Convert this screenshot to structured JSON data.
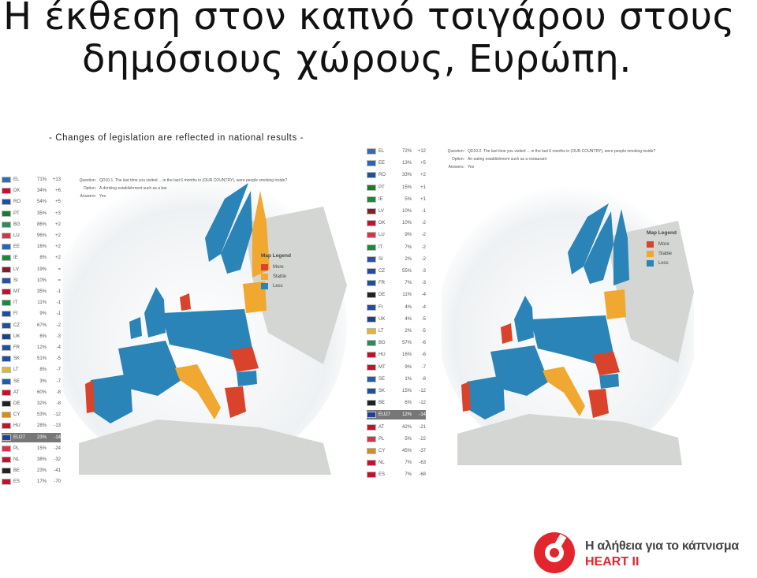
{
  "title": {
    "line1": "Η έκθεση στον καπνό τσιγάρου στους",
    "line2": "δημόσιους χώρους, Ευρώπη."
  },
  "subtitle": "- Changes of legislation are reflected in national results -",
  "left_panel": {
    "question_label": "Question:",
    "question": "QD10.1. The last time you visited ... in the last 6 months in (OUR COUNTRY), were people smoking inside?",
    "option_label": "Option:",
    "option": "A drinking establishment such as a bar",
    "answers_label": "Answers:",
    "answers": "Yes",
    "rows": [
      {
        "code": "EL",
        "pct": "71%",
        "chg": "+13",
        "flag": "#2f6db5"
      },
      {
        "code": "DK",
        "pct": "34%",
        "chg": "+6",
        "flag": "#c8102e"
      },
      {
        "code": "RO",
        "pct": "54%",
        "chg": "+5",
        "flag": "#1e4fa0"
      },
      {
        "code": "PT",
        "pct": "35%",
        "chg": "+3",
        "flag": "#1a7a2e"
      },
      {
        "code": "BG",
        "pct": "86%",
        "chg": "+2",
        "flag": "#2e8b57"
      },
      {
        "code": "LU",
        "pct": "96%",
        "chg": "+2",
        "flag": "#d9334a"
      },
      {
        "code": "EE",
        "pct": "16%",
        "chg": "+2",
        "flag": "#2a63b8"
      },
      {
        "code": "IE",
        "pct": "8%",
        "chg": "+2",
        "flag": "#1a8a3c"
      },
      {
        "code": "LV",
        "pct": "19%",
        "chg": "=",
        "flag": "#8a1c2a"
      },
      {
        "code": "SI",
        "pct": "10%",
        "chg": "=",
        "flag": "#2a4fa8"
      },
      {
        "code": "MT",
        "pct": "35%",
        "chg": "-1",
        "flag": "#c8102e"
      },
      {
        "code": "IT",
        "pct": "11%",
        "chg": "-1",
        "flag": "#1a8a3c"
      },
      {
        "code": "FI",
        "pct": "9%",
        "chg": "-1",
        "flag": "#1e4fa0"
      },
      {
        "code": "CZ",
        "pct": "67%",
        "chg": "-2",
        "flag": "#1e4fa0"
      },
      {
        "code": "UK",
        "pct": "6%",
        "chg": "-3",
        "flag": "#1e3f8a"
      },
      {
        "code": "FR",
        "pct": "12%",
        "chg": "-4",
        "flag": "#1e4fa0"
      },
      {
        "code": "SK",
        "pct": "51%",
        "chg": "-5",
        "flag": "#1e4fa0"
      },
      {
        "code": "LT",
        "pct": "8%",
        "chg": "-7",
        "flag": "#e0b82a"
      },
      {
        "code": "SE",
        "pct": "3%",
        "chg": "-7",
        "flag": "#1f5fa8"
      },
      {
        "code": "AT",
        "pct": "60%",
        "chg": "-8",
        "flag": "#c8102e"
      },
      {
        "code": "DE",
        "pct": "32%",
        "chg": "-8",
        "flag": "#222222"
      },
      {
        "code": "CY",
        "pct": "53%",
        "chg": "-12",
        "flag": "#d98a1e"
      },
      {
        "code": "HU",
        "pct": "28%",
        "chg": "-13",
        "flag": "#c8102e"
      },
      {
        "code": "EU27",
        "pct": "23%",
        "chg": "-14",
        "flag": "#1e3f9a"
      },
      {
        "code": "PL",
        "pct": "15%",
        "chg": "-24",
        "flag": "#d9334a"
      },
      {
        "code": "NL",
        "pct": "38%",
        "chg": "-32",
        "flag": "#c8102e"
      },
      {
        "code": "BE",
        "pct": "23%",
        "chg": "-41",
        "flag": "#222222"
      },
      {
        "code": "ES",
        "pct": "17%",
        "chg": "-70",
        "flag": "#c8102e"
      }
    ]
  },
  "right_panel": {
    "question_label": "Question:",
    "question": "QD10.2. The last time you visited ... in the last 6 months in (OUR COUNTRY), were people smoking inside?",
    "option_label": "Option:",
    "option": "An eating establishment such as a restaurant",
    "answers_label": "Answers:",
    "answers": "Yes",
    "rows": [
      {
        "code": "EL",
        "pct": "72%",
        "chg": "+12",
        "flag": "#2f6db5"
      },
      {
        "code": "EE",
        "pct": "13%",
        "chg": "+5",
        "flag": "#2a63b8"
      },
      {
        "code": "RO",
        "pct": "33%",
        "chg": "+2",
        "flag": "#1e4fa0"
      },
      {
        "code": "PT",
        "pct": "15%",
        "chg": "+1",
        "flag": "#1a7a2e"
      },
      {
        "code": "IE",
        "pct": "5%",
        "chg": "+1",
        "flag": "#1a8a3c"
      },
      {
        "code": "LV",
        "pct": "10%",
        "chg": "-1",
        "flag": "#8a1c2a"
      },
      {
        "code": "DK",
        "pct": "10%",
        "chg": "-2",
        "flag": "#c8102e"
      },
      {
        "code": "LU",
        "pct": "9%",
        "chg": "-2",
        "flag": "#d9334a"
      },
      {
        "code": "IT",
        "pct": "7%",
        "chg": "-2",
        "flag": "#1a8a3c"
      },
      {
        "code": "SI",
        "pct": "2%",
        "chg": "-2",
        "flag": "#2a4fa8"
      },
      {
        "code": "CZ",
        "pct": "55%",
        "chg": "-3",
        "flag": "#1e4fa0"
      },
      {
        "code": "FR",
        "pct": "7%",
        "chg": "-3",
        "flag": "#1e4fa0"
      },
      {
        "code": "DE",
        "pct": "11%",
        "chg": "-4",
        "flag": "#222222"
      },
      {
        "code": "FI",
        "pct": "4%",
        "chg": "-4",
        "flag": "#1e4fa0"
      },
      {
        "code": "UK",
        "pct": "4%",
        "chg": "-5",
        "flag": "#1e3f8a"
      },
      {
        "code": "LT",
        "pct": "2%",
        "chg": "-5",
        "flag": "#e0b82a"
      },
      {
        "code": "BG",
        "pct": "57%",
        "chg": "-6",
        "flag": "#2e8b57"
      },
      {
        "code": "HU",
        "pct": "16%",
        "chg": "-6",
        "flag": "#c8102e"
      },
      {
        "code": "MT",
        "pct": "9%",
        "chg": "-7",
        "flag": "#c8102e"
      },
      {
        "code": "SE",
        "pct": "1%",
        "chg": "-8",
        "flag": "#1f5fa8"
      },
      {
        "code": "SK",
        "pct": "15%",
        "chg": "-12",
        "flag": "#1e4fa0"
      },
      {
        "code": "BE",
        "pct": "6%",
        "chg": "-12",
        "flag": "#222222"
      },
      {
        "code": "EU27",
        "pct": "12%",
        "chg": "-14",
        "flag": "#1e3f9a"
      },
      {
        "code": "AT",
        "pct": "42%",
        "chg": "-21",
        "flag": "#c8102e"
      },
      {
        "code": "PL",
        "pct": "5%",
        "chg": "-22",
        "flag": "#d9334a"
      },
      {
        "code": "CY",
        "pct": "45%",
        "chg": "-37",
        "flag": "#d98a1e"
      },
      {
        "code": "NL",
        "pct": "7%",
        "chg": "-63",
        "flag": "#c8102e"
      },
      {
        "code": "ES",
        "pct": "7%",
        "chg": "-68",
        "flag": "#c8102e"
      }
    ]
  },
  "legend": {
    "title": "Map Legend",
    "items": [
      {
        "label": "More",
        "color": "#d9432b"
      },
      {
        "label": "Stable",
        "color": "#f0a830"
      },
      {
        "label": "Less",
        "color": "#2a84b8"
      }
    ]
  },
  "colors": {
    "more": "#d9432b",
    "stable": "#f0a830",
    "less": "#2a84b8",
    "sea": "#eef1f3",
    "land": "#d4d6d4"
  },
  "footer": {
    "line1": "Η αλήθεια για το κάπνισμα",
    "line2": "HEART II"
  }
}
